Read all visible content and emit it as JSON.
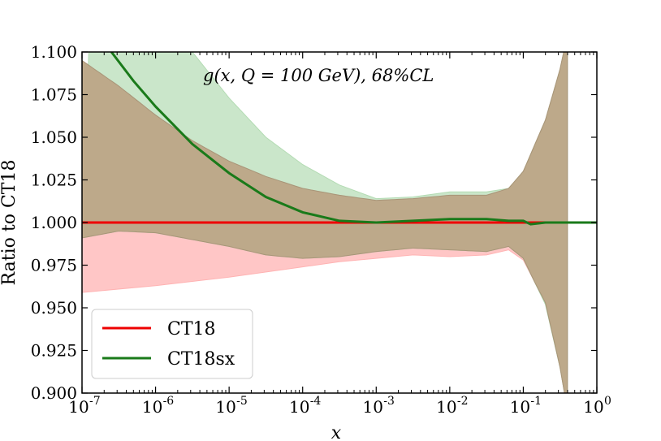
{
  "chart_data": {
    "type": "line",
    "title": "g(x, Q = 100 GeV),  68%CL",
    "xlabel": "x",
    "ylabel": "Ratio to CT18",
    "xscale": "log",
    "xlim": [
      1e-07,
      1
    ],
    "ylim": [
      0.9,
      1.1
    ],
    "xtick_values": [
      1e-07,
      1e-06,
      1e-05,
      0.0001,
      0.001,
      0.01,
      0.1,
      1
    ],
    "xtick_labels": [
      "10",
      "10",
      "10",
      "10",
      "10",
      "10",
      "10",
      "10"
    ],
    "xtick_exponents": [
      "-7",
      "-6",
      "-5",
      "-4",
      "-3",
      "-2",
      "-1",
      "0"
    ],
    "ytick_values": [
      0.9,
      0.925,
      0.95,
      0.975,
      1.0,
      1.025,
      1.05,
      1.075,
      1.1
    ],
    "ytick_labels": [
      "0.900",
      "0.925",
      "0.950",
      "0.975",
      "1.000",
      "1.025",
      "1.050",
      "1.075",
      "1.100"
    ],
    "legend_position": "lower-left",
    "series": [
      {
        "name": "CT18",
        "color": "#ee0000",
        "band_color": "#ffb3b3",
        "central": [
          [
            -7,
            1.0
          ],
          [
            0,
            1.0
          ]
        ],
        "band_upper": [
          [
            -7,
            1.095
          ],
          [
            -6.5,
            1.08
          ],
          [
            -6,
            1.063
          ],
          [
            -5.5,
            1.048
          ],
          [
            -5,
            1.036
          ],
          [
            -4.5,
            1.027
          ],
          [
            -4,
            1.02
          ],
          [
            -3.5,
            1.016
          ],
          [
            -3,
            1.013
          ],
          [
            -2.5,
            1.014
          ],
          [
            -2,
            1.016
          ],
          [
            -1.5,
            1.016
          ],
          [
            -1.2,
            1.02
          ],
          [
            -1,
            1.03
          ],
          [
            -0.7,
            1.06
          ],
          [
            -0.5,
            1.09
          ],
          [
            -0.4,
            1.11
          ]
        ],
        "band_lower": [
          [
            -7,
            0.959
          ],
          [
            -6,
            0.963
          ],
          [
            -5,
            0.968
          ],
          [
            -4,
            0.974
          ],
          [
            -3.5,
            0.977
          ],
          [
            -3,
            0.979
          ],
          [
            -2.5,
            0.981
          ],
          [
            -2,
            0.98
          ],
          [
            -1.5,
            0.981
          ],
          [
            -1.2,
            0.984
          ],
          [
            -1,
            0.978
          ],
          [
            -0.7,
            0.953
          ],
          [
            -0.5,
            0.915
          ],
          [
            -0.4,
            0.89
          ]
        ]
      },
      {
        "name": "CT18sx",
        "color": "#1a7a1a",
        "band_color": "#b3dbb3",
        "central": [
          [
            -6.6,
            1.1
          ],
          [
            -6.3,
            1.083
          ],
          [
            -6,
            1.068
          ],
          [
            -5.5,
            1.046
          ],
          [
            -5,
            1.029
          ],
          [
            -4.5,
            1.015
          ],
          [
            -4,
            1.006
          ],
          [
            -3.5,
            1.001
          ],
          [
            -3,
            1.0
          ],
          [
            -2.5,
            1.001
          ],
          [
            -2,
            1.002
          ],
          [
            -1.5,
            1.002
          ],
          [
            -1.2,
            1.001
          ],
          [
            -1,
            1.001
          ],
          [
            -0.9,
            0.999
          ],
          [
            -0.7,
            1.0
          ],
          [
            0,
            1.0
          ]
        ],
        "band_upper": [
          [
            -6.9,
            1.11
          ],
          [
            -5.9,
            1.11
          ],
          [
            -5.5,
            1.1
          ],
          [
            -5,
            1.073
          ],
          [
            -4.5,
            1.05
          ],
          [
            -4,
            1.034
          ],
          [
            -3.5,
            1.022
          ],
          [
            -3,
            1.014
          ],
          [
            -2.5,
            1.015
          ],
          [
            -2,
            1.018
          ],
          [
            -1.5,
            1.018
          ],
          [
            -1.2,
            1.02
          ],
          [
            -1,
            1.03
          ],
          [
            -0.7,
            1.06
          ],
          [
            -0.5,
            1.09
          ],
          [
            -0.4,
            1.11
          ]
        ],
        "band_lower": [
          [
            -7,
            0.991
          ],
          [
            -6.5,
            0.995
          ],
          [
            -6,
            0.994
          ],
          [
            -5,
            0.986
          ],
          [
            -4.5,
            0.981
          ],
          [
            -4,
            0.979
          ],
          [
            -3.5,
            0.98
          ],
          [
            -3,
            0.983
          ],
          [
            -2.5,
            0.985
          ],
          [
            -2,
            0.984
          ],
          [
            -1.5,
            0.983
          ],
          [
            -1.2,
            0.986
          ],
          [
            -1,
            0.979
          ],
          [
            -0.7,
            0.952
          ],
          [
            -0.5,
            0.915
          ],
          [
            -0.4,
            0.89
          ]
        ]
      }
    ]
  }
}
